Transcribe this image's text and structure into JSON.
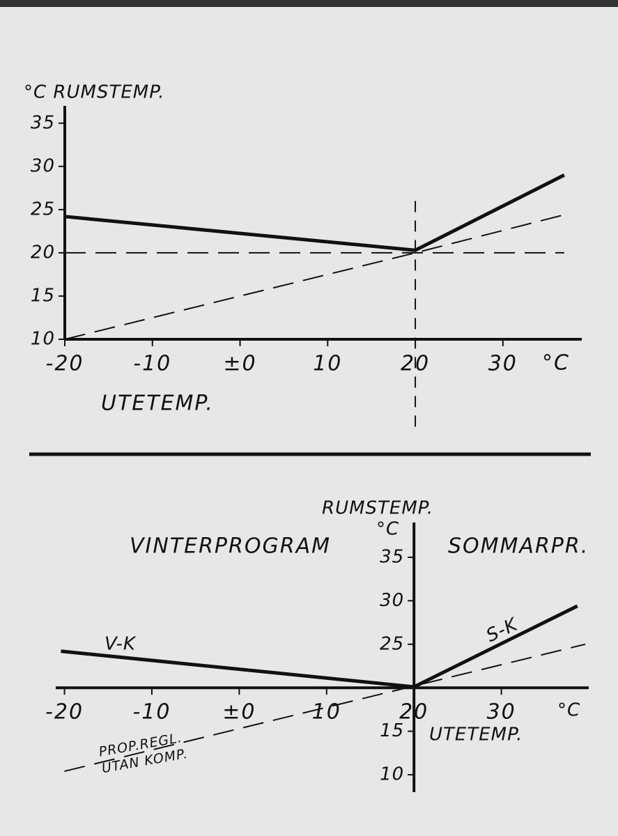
{
  "chart_data": [
    {
      "type": "line",
      "y_axis_label": "°C RUMSTEMP.",
      "x_axis_label": "UTETEMP.",
      "x_unit": "°C",
      "xlim": [
        -20,
        39
      ],
      "ylim": [
        10,
        37
      ],
      "xticks": [
        -20,
        -10,
        {
          "value": 0,
          "label": "±0"
        },
        10,
        20,
        30
      ],
      "yticks": [
        10,
        15,
        20,
        25,
        30,
        35
      ],
      "vline_x": 20,
      "color": "#111111",
      "series": [
        {
          "x": [
            -20,
            20,
            37
          ],
          "values": [
            24.2,
            20.3,
            29
          ],
          "dashed": false
        },
        {
          "x": [
            -20,
            20,
            37
          ],
          "values": [
            10,
            20,
            24.4
          ],
          "dashed": true
        },
        {
          "x": [
            -20,
            37
          ],
          "values": [
            20,
            20
          ],
          "dashed": true
        }
      ]
    },
    {
      "type": "line",
      "y_axis_label": "RUMSTEMP.",
      "y_unit": "°C",
      "x_axis_label": "UTETEMP.",
      "x_unit": "°C",
      "left_title": "VINTERPROGRAM",
      "right_title": "SOMMARPR.",
      "xlim": [
        -21,
        40
      ],
      "ylim": [
        8,
        39
      ],
      "x_axis_at": 20,
      "y_axis_at": 20,
      "xticks": [
        -20,
        -10,
        {
          "value": 0,
          "label": "±0"
        },
        10,
        20,
        30
      ],
      "yticks": [
        10,
        15,
        25,
        30,
        35
      ],
      "color": "#111111",
      "series": [
        {
          "name": "V-K",
          "x": [
            -20.4,
            20
          ],
          "values": [
            24.2,
            20.1
          ],
          "dashed": false
        },
        {
          "name": "S-K",
          "x": [
            20,
            38.7
          ],
          "values": [
            20.1,
            29.4
          ],
          "dashed": false
        },
        {
          "name": "PROP.REGL. UTAN KOMP.",
          "x": [
            -20,
            39.6
          ],
          "values": [
            10.4,
            25
          ],
          "dashed": true
        }
      ]
    }
  ]
}
